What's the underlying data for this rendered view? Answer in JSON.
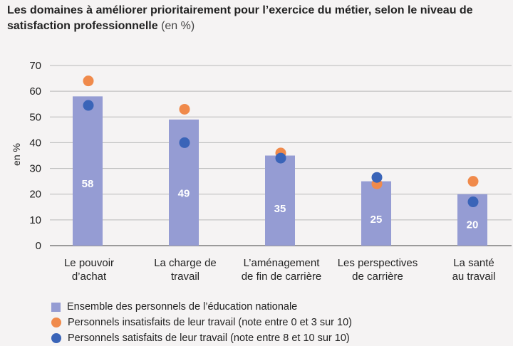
{
  "chart_data": {
    "type": "bar",
    "title": "Les domaines à améliorer prioritairement pour l’exercice du métier, selon le niveau de satisfaction professionnelle",
    "title_unit": "(en %)",
    "ylabel": "en %",
    "xlabel": "",
    "ylim": [
      0,
      70
    ],
    "yticks": [
      0,
      10,
      20,
      30,
      40,
      50,
      60,
      70
    ],
    "grid": true,
    "categories": [
      [
        "Le pouvoir",
        "d’achat"
      ],
      [
        "La charge de",
        "travail"
      ],
      [
        "L’aménagement",
        "de fin de carrière"
      ],
      [
        "Les perspectives",
        "de carrière"
      ],
      [
        "La santé",
        "au travail"
      ]
    ],
    "series": [
      {
        "name": "Ensemble des personnels de l’éducation nationale",
        "kind": "bar",
        "color": "#959cd3",
        "values": [
          58,
          49,
          35,
          25,
          20
        ],
        "labels": [
          "58",
          "49",
          "35",
          "25",
          "20"
        ]
      },
      {
        "name": "Personnels insatisfaits de leur travail (note entre 0 et 3 sur 10)",
        "kind": "dot",
        "color": "#f08a4b",
        "values": [
          64,
          53,
          36,
          24,
          25
        ]
      },
      {
        "name": "Personnels satisfaits de leur travail (note entre 8 et 10 sur 10)",
        "kind": "dot",
        "color": "#3a64b8",
        "values": [
          54.5,
          40,
          34,
          26.5,
          17
        ]
      }
    ]
  }
}
